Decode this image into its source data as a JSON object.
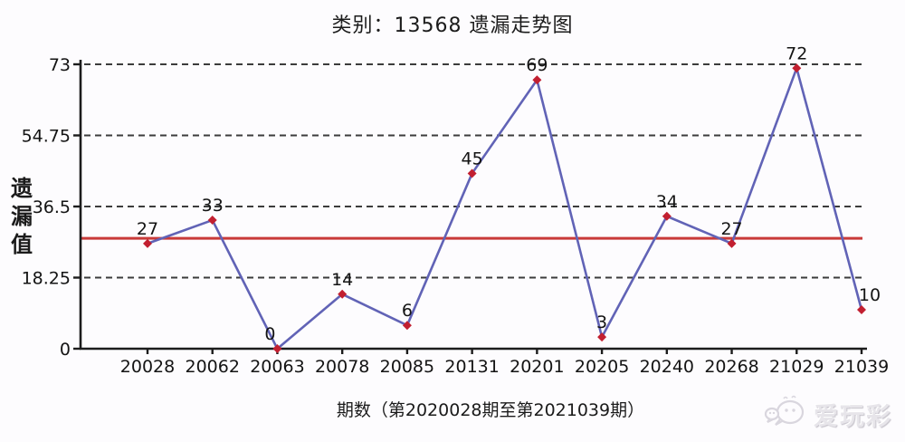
{
  "title": "类别：13568 遗漏走势图",
  "watermark": {
    "brand": "爱玩彩",
    "icon": "wechat-icon"
  },
  "chart_data": {
    "type": "line",
    "title": "类别：13568 遗漏走势图",
    "categories": [
      "20028",
      "20062",
      "20063",
      "20078",
      "20085",
      "20131",
      "20201",
      "20205",
      "20240",
      "20268",
      "21029",
      "21039"
    ],
    "values": [
      27,
      33,
      0,
      14,
      6,
      45,
      69,
      3,
      34,
      27,
      72,
      10
    ],
    "data_labels": [
      "27",
      "33",
      "0",
      "14",
      "6",
      "45",
      "69",
      "3",
      "34",
      "27",
      "72",
      "10"
    ],
    "xlabel": "期数（第2020028期至第2021039期）",
    "ylabel": "遗漏值",
    "yticks": [
      0,
      18.25,
      36.5,
      54.75,
      73
    ],
    "ytick_labels": [
      "0",
      "18.25",
      "36.5",
      "54.75",
      "73"
    ],
    "ylim": [
      0,
      73
    ],
    "average_line_value": 28.33,
    "grid": "horizontal-dashed",
    "legend_position": "none",
    "colors": {
      "series_line": "#6163b6",
      "marker": "#c21f30",
      "average_line": "#c93a38",
      "grid_line": "#3c3c3c",
      "axis": "#1c1c1c",
      "text": "#141414"
    }
  }
}
